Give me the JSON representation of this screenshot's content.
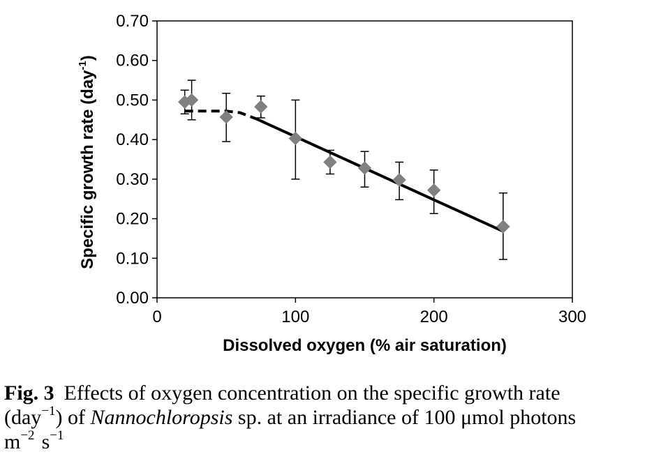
{
  "chart_data": {
    "type": "scatter",
    "xlabel": "Dissolved oxygen (% air saturation)",
    "ylabel_main": "Specific growth rate (day",
    "ylabel_sup": "-1",
    "ylabel_close": ")",
    "xlim": [
      0,
      300
    ],
    "ylim": [
      0,
      0.7
    ],
    "x_ticks": [
      "0",
      "100",
      "200",
      "300"
    ],
    "y_ticks": [
      "0.00",
      "0.10",
      "0.20",
      "0.30",
      "0.40",
      "0.50",
      "0.60",
      "0.70"
    ],
    "grid": false,
    "legend": "none",
    "points": [
      {
        "x": 20,
        "y": 0.495,
        "err_low": 0.465,
        "err_high": 0.525
      },
      {
        "x": 25,
        "y": 0.5,
        "err_low": 0.45,
        "err_high": 0.55
      },
      {
        "x": 50,
        "y": 0.457,
        "err_low": 0.395,
        "err_high": 0.517
      },
      {
        "x": 75,
        "y": 0.483,
        "err_low": 0.455,
        "err_high": 0.51
      },
      {
        "x": 100,
        "y": 0.403,
        "err_low": 0.3,
        "err_high": 0.5
      },
      {
        "x": 125,
        "y": 0.343,
        "err_low": 0.313,
        "err_high": 0.373
      },
      {
        "x": 150,
        "y": 0.328,
        "err_low": 0.28,
        "err_high": 0.37
      },
      {
        "x": 175,
        "y": 0.298,
        "err_low": 0.248,
        "err_high": 0.343
      },
      {
        "x": 200,
        "y": 0.272,
        "err_low": 0.213,
        "err_high": 0.323
      },
      {
        "x": 250,
        "y": 0.18,
        "err_low": 0.097,
        "err_high": 0.265
      }
    ],
    "fit_dashed": [
      [
        20,
        0.472
      ],
      [
        50,
        0.472
      ],
      [
        60,
        0.468
      ],
      [
        72,
        0.452
      ]
    ],
    "fit_solid": [
      [
        72,
        0.452
      ],
      [
        250,
        0.168
      ]
    ],
    "colors": {
      "marker": "#808080",
      "line": "#000000",
      "axis": "#000000"
    }
  },
  "caption": {
    "fig_label": "Fig. 3",
    "line1": "Effects of oxygen concentration on the specific growth rate",
    "line2_a": "(day",
    "line2_sup": "−1",
    "line2_b": ") of ",
    "line2_italic": "Nannochloropsis",
    "line2_c": " sp. at an irradiance of 100 μmol photons",
    "line3_a": "m",
    "line3_sup1": "−2",
    "line3_b": "s",
    "line3_sup2": "−1"
  }
}
